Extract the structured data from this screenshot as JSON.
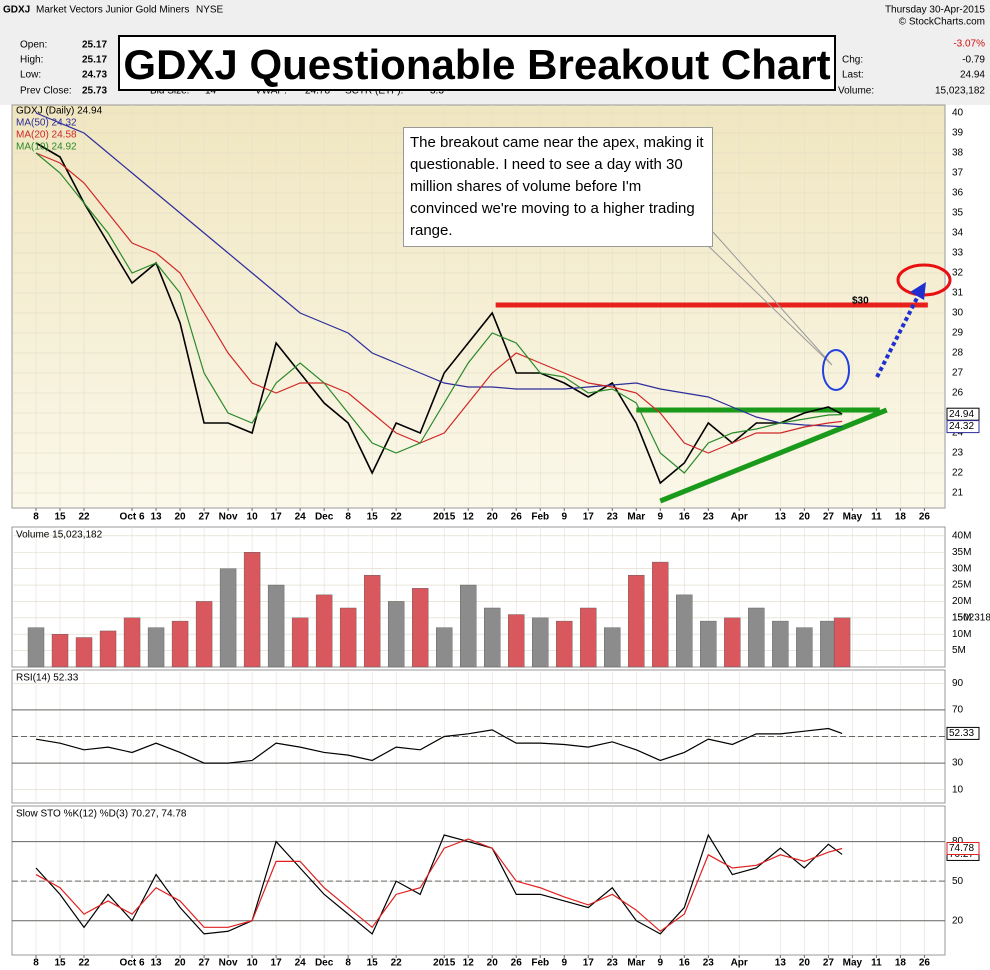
{
  "header": {
    "symbol": "GDXJ",
    "name": "Market Vectors Junior Gold Miners",
    "exchange": "NYSE",
    "date": "Thursday  30-Apr-2015",
    "change_pct": "-3.07%",
    "source": "© StockCharts.com",
    "fields": [
      {
        "label": "Open:",
        "value": "25.17"
      },
      {
        "label": "High:",
        "value": "25.17"
      },
      {
        "label": "Low:",
        "value": "24.73"
      },
      {
        "label": "Prev Close:",
        "value": "25.73"
      },
      {
        "label": "Bid Size:",
        "value": "14"
      },
      {
        "label": "VWAP:",
        "value": "24.78"
      },
      {
        "label": "SCTR (ETF):",
        "value": "3.3"
      },
      {
        "label": "Chg:",
        "value": "-0.79"
      },
      {
        "label": "Last:",
        "value": "24.94"
      },
      {
        "label": "Volume:",
        "value": "15,023,182"
      }
    ]
  },
  "title": "GDXJ Questionable Breakout Chart",
  "annotation": "The breakout came near the apex, making it questionable.  I need to see a day with 30 million shares of volume before I'm convinced we're moving to a higher trading range.",
  "target_label": "$30",
  "chart_data": [
    {
      "type": "line",
      "x": [
        0,
        7,
        14,
        21,
        28,
        35,
        42,
        49,
        56,
        63,
        70,
        77,
        84,
        91,
        98,
        105,
        112,
        119,
        126,
        133,
        140,
        147,
        154,
        161,
        168,
        175,
        182,
        189,
        196,
        203,
        210,
        217,
        224,
        231,
        235
      ],
      "xlim": [
        -7,
        265
      ],
      "xticks": [
        {
          "value": 0,
          "label": "8"
        },
        {
          "value": 7,
          "label": "15"
        },
        {
          "value": 14,
          "label": "22"
        },
        {
          "value": 28,
          "label": "Oct 6"
        },
        {
          "value": 35,
          "label": "13"
        },
        {
          "value": 42,
          "label": "20"
        },
        {
          "value": 49,
          "label": "27"
        },
        {
          "value": 56,
          "label": "Nov"
        },
        {
          "value": 63,
          "label": "10"
        },
        {
          "value": 70,
          "label": "17"
        },
        {
          "value": 77,
          "label": "24"
        },
        {
          "value": 84,
          "label": "Dec"
        },
        {
          "value": 91,
          "label": "8"
        },
        {
          "value": 98,
          "label": "15"
        },
        {
          "value": 105,
          "label": "22"
        },
        {
          "value": 119,
          "label": "2015"
        },
        {
          "value": 126,
          "label": "12"
        },
        {
          "value": 133,
          "label": "20"
        },
        {
          "value": 140,
          "label": "26"
        },
        {
          "value": 147,
          "label": "Feb"
        },
        {
          "value": 154,
          "label": "9"
        },
        {
          "value": 161,
          "label": "17"
        },
        {
          "value": 168,
          "label": "23"
        },
        {
          "value": 175,
          "label": "Mar"
        },
        {
          "value": 182,
          "label": "9"
        },
        {
          "value": 189,
          "label": "16"
        },
        {
          "value": 196,
          "label": "23"
        },
        {
          "value": 205,
          "label": "Apr"
        },
        {
          "value": 217,
          "label": "13"
        },
        {
          "value": 224,
          "label": "20"
        },
        {
          "value": 231,
          "label": "27"
        },
        {
          "value": 238,
          "label": "May"
        },
        {
          "value": 245,
          "label": "11"
        },
        {
          "value": 252,
          "label": "18"
        },
        {
          "value": 259,
          "label": "26"
        }
      ],
      "ylim": [
        20.25,
        40.4
      ],
      "yticks": [
        21,
        22,
        23,
        24,
        25,
        26,
        27,
        28,
        29,
        30,
        31,
        32,
        33,
        34,
        35,
        36,
        37,
        38,
        39,
        40
      ],
      "series": [
        {
          "name": "GDXJ (Daily) 24.94",
          "color": "#000000",
          "values": [
            38.5,
            37.8,
            35.5,
            33.5,
            31.5,
            32.5,
            29.5,
            24.5,
            24.5,
            24,
            28.5,
            27,
            25.5,
            24.5,
            22,
            24.5,
            24,
            27,
            28.5,
            30,
            27,
            27,
            26.5,
            25.8,
            26.5,
            24.5,
            21.5,
            22.5,
            24.5,
            23.5,
            24.5,
            24.5,
            25,
            25.3,
            24.94
          ]
        },
        {
          "name": "MA(50) 24.32",
          "color": "#2d2d9c",
          "values": [
            40,
            39.5,
            39,
            38,
            37,
            36,
            35,
            34,
            33,
            32,
            31,
            30,
            29.5,
            29,
            28,
            27.5,
            27,
            26.5,
            26.3,
            26.3,
            26.2,
            26.2,
            26.2,
            26.3,
            26.4,
            26.5,
            26.2,
            26,
            25.8,
            25.3,
            24.8,
            24.5,
            24.4,
            24.35,
            24.32
          ]
        },
        {
          "name": "MA(20) 24.58",
          "color": "#d02828",
          "values": [
            38,
            37.5,
            36.5,
            35,
            33.5,
            33,
            32,
            30,
            28,
            26.5,
            26,
            26.5,
            26.5,
            26,
            25,
            24,
            23.5,
            24,
            25.5,
            27,
            28,
            27.5,
            27,
            26.5,
            26.3,
            26,
            25,
            23.5,
            23,
            23.5,
            24,
            24,
            24.3,
            24.5,
            24.58
          ]
        },
        {
          "name": "MA(10) 24.92",
          "color": "#2a8a2a",
          "values": [
            38,
            37,
            35.5,
            34,
            32,
            32.5,
            31,
            27,
            25,
            24.5,
            26.5,
            27.5,
            26.5,
            25,
            23.5,
            23,
            23.5,
            25.5,
            27.5,
            29,
            28.5,
            27,
            26.8,
            26,
            26.2,
            25.5,
            23,
            22,
            23.5,
            24,
            24.2,
            24.5,
            24.7,
            24.9,
            24.92
          ]
        }
      ],
      "levels": [
        {
          "x": [
            134,
            260
          ],
          "y": [
            30.4,
            30.4
          ],
          "color": "#e8201c"
        },
        {
          "x": [
            175,
            246
          ],
          "y": [
            25.15,
            25.15
          ],
          "color": "#1a9a1a"
        },
        {
          "x": [
            182,
            248
          ],
          "y": [
            20.6,
            25.15
          ],
          "color": "#1a9a1a"
        }
      ]
    },
    {
      "type": "bar",
      "title": "Volume 15,023,182",
      "last_label": "15023182",
      "x": [
        0,
        7,
        14,
        21,
        28,
        35,
        42,
        49,
        56,
        63,
        70,
        77,
        84,
        91,
        98,
        105,
        112,
        119,
        126,
        133,
        140,
        147,
        154,
        161,
        168,
        175,
        182,
        189,
        196,
        203,
        210,
        217,
        224,
        231,
        235
      ],
      "values": [
        12,
        10,
        9,
        11,
        15,
        12,
        14,
        20,
        30,
        35,
        25,
        15,
        22,
        18,
        28,
        20,
        24,
        12,
        25,
        18,
        16,
        15,
        14,
        18,
        12,
        28,
        32,
        22,
        14,
        15,
        18,
        14,
        12,
        14,
        15
      ],
      "colors": {
        "up": "#8c8c8c",
        "down": "#d9585d"
      },
      "ylim": [
        0,
        42.7
      ],
      "yticks": [
        {
          "value": 5,
          "label": "5M"
        },
        {
          "value": 10,
          "label": "10M"
        },
        {
          "value": 15,
          "label": "15M"
        },
        {
          "value": 20,
          "label": "20M"
        },
        {
          "value": 25,
          "label": "25M"
        },
        {
          "value": 30,
          "label": "30M"
        },
        {
          "value": 35,
          "label": "35M"
        },
        {
          "value": 40,
          "label": "40M"
        }
      ]
    },
    {
      "type": "line",
      "title": "RSI(14) 52.33",
      "x": [
        0,
        7,
        14,
        21,
        28,
        35,
        42,
        49,
        56,
        63,
        70,
        77,
        84,
        91,
        98,
        105,
        112,
        119,
        126,
        133,
        140,
        147,
        154,
        161,
        168,
        175,
        182,
        189,
        196,
        203,
        210,
        217,
        224,
        231,
        235
      ],
      "ylim": [
        0,
        100
      ],
      "yticks": [
        10,
        30,
        50,
        70,
        90
      ],
      "bands": [
        30,
        70
      ],
      "midline": 50,
      "series": [
        {
          "color": "#000000",
          "values": [
            48,
            45,
            40,
            42,
            38,
            45,
            38,
            30,
            30,
            32,
            45,
            42,
            38,
            36,
            32,
            42,
            40,
            50,
            52,
            55,
            45,
            45,
            44,
            42,
            46,
            40,
            32,
            38,
            48,
            44,
            52,
            52,
            54,
            56,
            52.33
          ]
        }
      ]
    },
    {
      "type": "line",
      "title": "Slow STO %K(12) %D(3) 70.27, 74.78",
      "x": [
        0,
        7,
        14,
        21,
        28,
        35,
        42,
        49,
        56,
        63,
        70,
        77,
        84,
        91,
        98,
        105,
        112,
        119,
        126,
        133,
        140,
        147,
        154,
        161,
        168,
        175,
        182,
        189,
        196,
        203,
        210,
        217,
        224,
        231,
        235
      ],
      "ylim": [
        -6,
        107
      ],
      "yticks": [
        20,
        50,
        80
      ],
      "bands": [
        20,
        80
      ],
      "midline": 50,
      "series": [
        {
          "color": "#000000",
          "values": [
            60,
            40,
            15,
            40,
            20,
            55,
            30,
            10,
            12,
            20,
            80,
            60,
            40,
            25,
            10,
            50,
            40,
            85,
            80,
            75,
            40,
            40,
            35,
            30,
            45,
            20,
            10,
            30,
            85,
            55,
            60,
            75,
            60,
            78,
            70.27
          ]
        },
        {
          "color": "#e02020",
          "values": [
            55,
            45,
            25,
            35,
            25,
            45,
            35,
            15,
            15,
            20,
            65,
            65,
            45,
            30,
            15,
            40,
            45,
            75,
            82,
            75,
            50,
            45,
            38,
            32,
            40,
            28,
            12,
            25,
            70,
            60,
            62,
            70,
            65,
            72,
            74.78
          ]
        }
      ]
    }
  ]
}
